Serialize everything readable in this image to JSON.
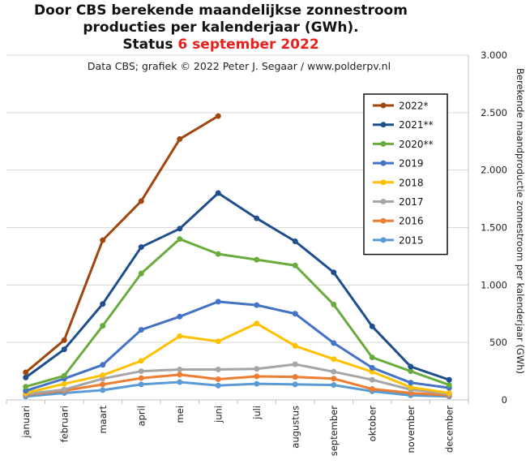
{
  "title": {
    "line1": "Door CBS berekende maandelijkse  zonnestroom",
    "line2": "producties per kalenderjaar (GWh).",
    "line3_prefix": "Status ",
    "line3_highlight": "6 september 2022"
  },
  "credit": "Data CBS;  grafiek © 2022  Peter J. Segaar / www.polderpv.nl",
  "chart_data": {
    "type": "line",
    "categories": [
      "januari",
      "februari",
      "maart",
      "april",
      "mei",
      "juni",
      "juli",
      "augustus",
      "september",
      "oktober",
      "november",
      "december"
    ],
    "ylabel": "Berekende maandproductie zonnestroom per kalenderjaar (GWh)",
    "ylim": [
      0,
      3000
    ],
    "y_ticks": [
      0,
      500,
      1000,
      1500,
      2000,
      2500,
      3000
    ],
    "y_tick_labels": [
      "0",
      "500",
      "1.000",
      "1.500",
      "2.000",
      "2.500",
      "3.000"
    ],
    "y_axis_side": "right",
    "grid": true,
    "legend_position": "top-right",
    "series": [
      {
        "name": "2022*",
        "color": "#a0460e",
        "values": [
          240,
          520,
          1390,
          1730,
          2270,
          2470,
          null,
          null,
          null,
          null,
          null,
          null
        ]
      },
      {
        "name": "2021**",
        "color": "#1f4e8c",
        "values": [
          195,
          440,
          835,
          1330,
          1490,
          1800,
          1580,
          1380,
          1110,
          640,
          290,
          175
        ]
      },
      {
        "name": "2020**",
        "color": "#6aab3e",
        "values": [
          115,
          210,
          645,
          1100,
          1400,
          1270,
          1220,
          1170,
          830,
          370,
          250,
          130
        ]
      },
      {
        "name": "2019",
        "color": "#4472c4",
        "values": [
          80,
          185,
          305,
          610,
          725,
          855,
          825,
          750,
          495,
          280,
          150,
          105
        ]
      },
      {
        "name": "2018",
        "color": "#ffc000",
        "values": [
          60,
          140,
          215,
          340,
          555,
          510,
          665,
          470,
          355,
          245,
          110,
          60
        ]
      },
      {
        "name": "2017",
        "color": "#a5a5a5",
        "values": [
          50,
          90,
          185,
          250,
          265,
          265,
          270,
          310,
          245,
          175,
          90,
          50
        ]
      },
      {
        "name": "2016",
        "color": "#ed7d31",
        "values": [
          45,
          80,
          135,
          190,
          220,
          180,
          205,
          200,
          185,
          95,
          60,
          40
        ]
      },
      {
        "name": "2015",
        "color": "#5b9bd5",
        "values": [
          30,
          60,
          85,
          135,
          155,
          125,
          140,
          135,
          130,
          75,
          40,
          30
        ]
      }
    ]
  }
}
